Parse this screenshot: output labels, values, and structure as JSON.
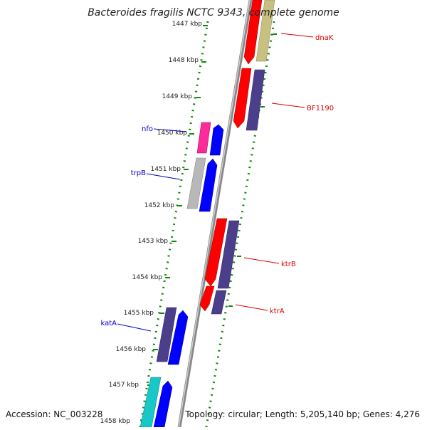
{
  "title": "Bacteroides fragilis NCTC 9343, complete genome",
  "footer": {
    "accession": "Accession: NC_003228",
    "topology": "Topology: circular; Length: 5,205,140 bp; Genes: 4,276"
  },
  "scale": {
    "ticks": [
      "1447 kbp",
      "1448 kbp",
      "1449 kbp",
      "1450 kbp",
      "1451 kbp",
      "1452 kbp",
      "1453 kbp",
      "1454 kbp",
      "1455 kbp",
      "1456 kbp",
      "1457 kbp",
      "1458 kbp"
    ]
  },
  "colors": {
    "red": "#ff0000",
    "khaki": "#c8c080",
    "slate": "#4b3f8c",
    "blue": "#0000ff",
    "magenta": "#ff2a9a",
    "gray": "#b8b8b8",
    "teal": "#18c8c8",
    "guide_green": "#118811",
    "label_red": "#dd0000",
    "label_blue": "#0000cc"
  },
  "gene_labels": {
    "right": [
      {
        "name": "dnaK"
      },
      {
        "name": "BF1190"
      },
      {
        "name": "ktrB"
      },
      {
        "name": "ktrA"
      }
    ],
    "left": [
      {
        "name": "nfo"
      },
      {
        "name": "trpB"
      },
      {
        "name": "katA"
      }
    ]
  }
}
